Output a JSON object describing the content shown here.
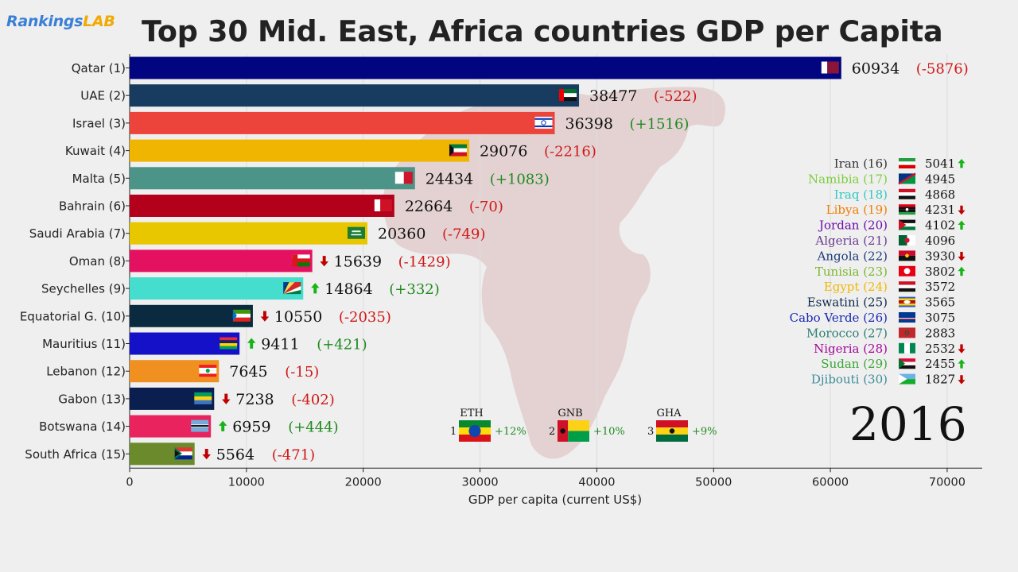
{
  "header": {
    "logo_part1": "Rankings",
    "logo_part2": "LAB",
    "title": "Top 30 Mid. East, Africa countries GDP per Capita"
  },
  "year": "2016",
  "chart_data": {
    "type": "bar",
    "orientation": "horizontal",
    "title": "Top 30 Mid. East, Africa countries GDP per Capita",
    "xlabel": "GDP per capita (current US$)",
    "ylabel": "",
    "xlim": [
      0,
      73000
    ],
    "xticks": [
      0,
      10000,
      20000,
      30000,
      40000,
      50000,
      60000,
      70000
    ],
    "grid": true,
    "bars": [
      {
        "label": "Qatar (1)",
        "value": 60934,
        "change": "(-5876)",
        "change_dir": "neg",
        "arrow": "",
        "color": "#020580",
        "flag": "QA"
      },
      {
        "label": "UAE (2)",
        "value": 38477,
        "change": "(-522)",
        "change_dir": "neg",
        "arrow": "",
        "color": "#173c60",
        "flag": "AE"
      },
      {
        "label": "Israel (3)",
        "value": 36398,
        "change": "(+1516)",
        "change_dir": "pos",
        "arrow": "",
        "color": "#ec443a",
        "flag": "IL"
      },
      {
        "label": "Kuwait (4)",
        "value": 29076,
        "change": "(-2216)",
        "change_dir": "neg",
        "arrow": "",
        "color": "#f0b500",
        "flag": "KW"
      },
      {
        "label": "Malta (5)",
        "value": 24434,
        "change": "(+1083)",
        "change_dir": "pos",
        "arrow": "",
        "color": "#4c9488",
        "flag": "MT"
      },
      {
        "label": "Bahrain (6)",
        "value": 22664,
        "change": "(-70)",
        "change_dir": "neg",
        "arrow": "",
        "color": "#b3001b",
        "flag": "BH"
      },
      {
        "label": "Saudi Arabia (7)",
        "value": 20360,
        "change": "(-749)",
        "change_dir": "neg",
        "arrow": "",
        "color": "#e8c700",
        "flag": "SA"
      },
      {
        "label": "Oman (8)",
        "value": 15639,
        "change": "(-1429)",
        "change_dir": "neg",
        "arrow": "down",
        "color": "#e3115f",
        "flag": "OM"
      },
      {
        "label": "Seychelles (9)",
        "value": 14864,
        "change": "(+332)",
        "change_dir": "pos",
        "arrow": "up",
        "color": "#45ddcd",
        "flag": "SC"
      },
      {
        "label": "Equatorial G. (10)",
        "value": 10550,
        "change": "(-2035)",
        "change_dir": "neg",
        "arrow": "down",
        "color": "#0a2b3f",
        "flag": "GQ"
      },
      {
        "label": "Mauritius (11)",
        "value": 9411,
        "change": "(+421)",
        "change_dir": "pos",
        "arrow": "up",
        "color": "#1411c9",
        "flag": "MU"
      },
      {
        "label": "Lebanon (12)",
        "value": 7645,
        "change": "(-15)",
        "change_dir": "neg",
        "arrow": "",
        "color": "#ef9020",
        "flag": "LB"
      },
      {
        "label": "Gabon (13)",
        "value": 7238,
        "change": "(-402)",
        "change_dir": "neg",
        "arrow": "down",
        "color": "#0a1f4f",
        "flag": "GA"
      },
      {
        "label": "Botswana (14)",
        "value": 6959,
        "change": "(+444)",
        "change_dir": "pos",
        "arrow": "up",
        "color": "#e8235e",
        "flag": "BW"
      },
      {
        "label": "South Africa (15)",
        "value": 5564,
        "change": "(-471)",
        "change_dir": "neg",
        "arrow": "down",
        "color": "#6a8a2c",
        "flag": "ZA"
      }
    ],
    "side_list": [
      {
        "label": "Iran (16)",
        "value": "5041",
        "arrow": "up",
        "color": "#333333",
        "flag": "IR"
      },
      {
        "label": "Namibia (17)",
        "value": "4945",
        "arrow": "",
        "color": "#7ccf3c",
        "flag": "NA"
      },
      {
        "label": "Iraq (18)",
        "value": "4868",
        "arrow": "",
        "color": "#2fc9c0",
        "flag": "IQ"
      },
      {
        "label": "Libya (19)",
        "value": "4231",
        "arrow": "down",
        "color": "#f07d00",
        "flag": "LY"
      },
      {
        "label": "Jordan (20)",
        "value": "4102",
        "arrow": "up",
        "color": "#6a0fa8",
        "flag": "JO"
      },
      {
        "label": "Algeria (21)",
        "value": "4096",
        "arrow": "",
        "color": "#6a3b8f",
        "flag": "DZ"
      },
      {
        "label": "Angola (22)",
        "value": "3930",
        "arrow": "down",
        "color": "#1d3c7a",
        "flag": "AO"
      },
      {
        "label": "Tunisia (23)",
        "value": "3802",
        "arrow": "up",
        "color": "#7bb72b",
        "flag": "TN"
      },
      {
        "label": "Egypt (24)",
        "value": "3572",
        "arrow": "",
        "color": "#f0b800",
        "flag": "EG"
      },
      {
        "label": "Eswatini (25)",
        "value": "3565",
        "arrow": "",
        "color": "#0d2a4a",
        "flag": "SZ"
      },
      {
        "label": "Cabo Verde (26)",
        "value": "3075",
        "arrow": "",
        "color": "#1a2ab0",
        "flag": "CV"
      },
      {
        "label": "Morocco (27)",
        "value": "2883",
        "arrow": "",
        "color": "#2a7f72",
        "flag": "MA"
      },
      {
        "label": "Nigeria (28)",
        "value": "2532",
        "arrow": "down",
        "color": "#a2089a",
        "flag": "NG"
      },
      {
        "label": "Sudan (29)",
        "value": "2455",
        "arrow": "up",
        "color": "#3aa637",
        "flag": "SD"
      },
      {
        "label": "Djibouti (30)",
        "value": "1827",
        "arrow": "down",
        "color": "#3c8c9a",
        "flag": "DJ"
      }
    ],
    "top_growth": [
      {
        "rank": "1",
        "code": "ETH",
        "pct": "+12%",
        "flag": "ET"
      },
      {
        "rank": "2",
        "code": "GNB",
        "pct": "+10%",
        "flag": "GW"
      },
      {
        "rank": "3",
        "code": "GHA",
        "pct": "+9%",
        "flag": "GH"
      }
    ]
  },
  "colors": {
    "positive": "#1e8a1e",
    "negative": "#d01818",
    "arrow_up": "#16b416",
    "arrow_down": "#c00000",
    "map": "#dfc9c9"
  }
}
